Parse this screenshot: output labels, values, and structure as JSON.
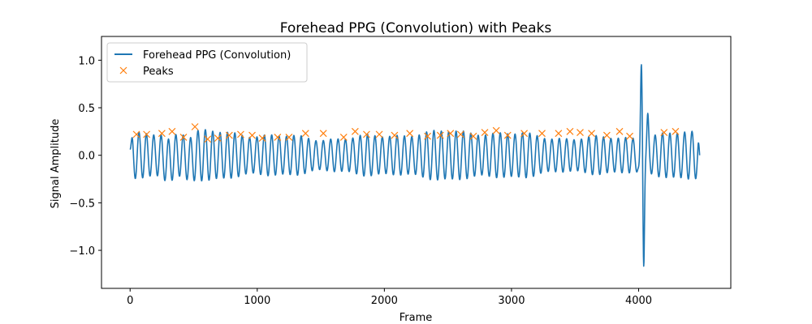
{
  "chart_data": {
    "type": "line",
    "title": "Forehead PPG (Convolution) with Peaks",
    "xlabel": "Frame",
    "ylabel": "Signal Amplitude",
    "xlim": [
      -225,
      4725
    ],
    "ylim": [
      -1.4,
      1.25
    ],
    "xticks": [
      0,
      1000,
      2000,
      3000,
      4000
    ],
    "yticks": [
      -1.0,
      -0.5,
      0.0,
      0.5,
      1.0
    ],
    "xtick_labels": [
      "0",
      "1000",
      "2000",
      "3000",
      "4000"
    ],
    "ytick_labels": [
      "−1.0",
      "−0.5",
      "0.0",
      "0.5",
      "1.0"
    ],
    "grid": false,
    "legend_position": "top-left",
    "series": [
      {
        "name": "Forehead PPG (Convolution)",
        "kind": "line",
        "color": "#1f77b4",
        "frames": 4480,
        "cycle_period_frames": 58,
        "typical_amplitude": 0.21,
        "start_value": 0.06,
        "features": [
          {
            "x": 4020,
            "y": 1.11
          },
          {
            "x": 4040,
            "y": -1.27
          },
          {
            "x": 4070,
            "y": 0.46
          },
          {
            "x": 4010,
            "y": -0.37
          },
          {
            "x": 4480,
            "y": 0.0
          }
        ]
      },
      {
        "name": "Peaks",
        "kind": "scatter",
        "marker": "x",
        "color": "#ff7f0e",
        "points": [
          {
            "x": 50,
            "y": 0.22
          },
          {
            "x": 130,
            "y": 0.22
          },
          {
            "x": 250,
            "y": 0.23
          },
          {
            "x": 330,
            "y": 0.25
          },
          {
            "x": 420,
            "y": 0.19
          },
          {
            "x": 510,
            "y": 0.3
          },
          {
            "x": 610,
            "y": 0.17
          },
          {
            "x": 690,
            "y": 0.18
          },
          {
            "x": 780,
            "y": 0.21
          },
          {
            "x": 870,
            "y": 0.22
          },
          {
            "x": 960,
            "y": 0.21
          },
          {
            "x": 1040,
            "y": 0.18
          },
          {
            "x": 1160,
            "y": 0.19
          },
          {
            "x": 1250,
            "y": 0.19
          },
          {
            "x": 1380,
            "y": 0.23
          },
          {
            "x": 1520,
            "y": 0.23
          },
          {
            "x": 1680,
            "y": 0.19
          },
          {
            "x": 1770,
            "y": 0.25
          },
          {
            "x": 1860,
            "y": 0.22
          },
          {
            "x": 1960,
            "y": 0.22
          },
          {
            "x": 2080,
            "y": 0.21
          },
          {
            "x": 2200,
            "y": 0.23
          },
          {
            "x": 2340,
            "y": 0.2
          },
          {
            "x": 2440,
            "y": 0.21
          },
          {
            "x": 2520,
            "y": 0.23
          },
          {
            "x": 2600,
            "y": 0.22
          },
          {
            "x": 2700,
            "y": 0.2
          },
          {
            "x": 2790,
            "y": 0.24
          },
          {
            "x": 2880,
            "y": 0.26
          },
          {
            "x": 2970,
            "y": 0.21
          },
          {
            "x": 3100,
            "y": 0.23
          },
          {
            "x": 3240,
            "y": 0.23
          },
          {
            "x": 3370,
            "y": 0.23
          },
          {
            "x": 3460,
            "y": 0.25
          },
          {
            "x": 3540,
            "y": 0.24
          },
          {
            "x": 3630,
            "y": 0.23
          },
          {
            "x": 3750,
            "y": 0.21
          },
          {
            "x": 3850,
            "y": 0.25
          },
          {
            "x": 3930,
            "y": 0.2
          },
          {
            "x": 4200,
            "y": 0.24
          },
          {
            "x": 4290,
            "y": 0.25
          }
        ]
      }
    ]
  }
}
